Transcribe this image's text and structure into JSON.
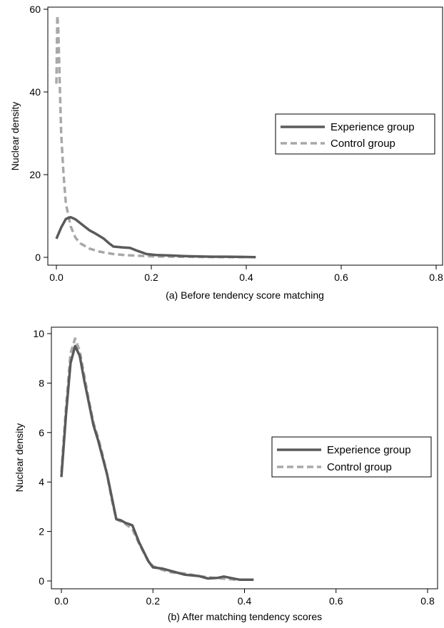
{
  "chart_data": [
    {
      "type": "line",
      "xlabel": "(a) Before tendency score matching",
      "ylabel": "Nuclear density",
      "xlim": [
        0,
        0.8
      ],
      "ylim": [
        0,
        60
      ],
      "xticks": [
        "0.0",
        "0.2",
        "0.4",
        "0.6",
        "0.8"
      ],
      "yticks": [
        "0",
        "20",
        "40",
        "60"
      ],
      "grid": false,
      "legend_position": "right",
      "series": [
        {
          "name": "Experience group",
          "style": "solid",
          "color": "#5a5a5a",
          "points": [
            [
              0.0,
              4.5
            ],
            [
              0.01,
              7.2
            ],
            [
              0.02,
              9.3
            ],
            [
              0.03,
              9.7
            ],
            [
              0.04,
              9.2
            ],
            [
              0.05,
              8.3
            ],
            [
              0.06,
              7.4
            ],
            [
              0.07,
              6.5
            ],
            [
              0.08,
              5.9
            ],
            [
              0.09,
              5.2
            ],
            [
              0.1,
              4.5
            ],
            [
              0.11,
              3.5
            ],
            [
              0.12,
              2.6
            ],
            [
              0.13,
              2.5
            ],
            [
              0.14,
              2.4
            ],
            [
              0.155,
              2.3
            ],
            [
              0.17,
              1.6
            ],
            [
              0.19,
              0.8
            ],
            [
              0.21,
              0.55
            ],
            [
              0.24,
              0.45
            ],
            [
              0.27,
              0.3
            ],
            [
              0.3,
              0.2
            ],
            [
              0.33,
              0.15
            ],
            [
              0.36,
              0.15
            ],
            [
              0.39,
              0.1
            ],
            [
              0.42,
              0.05
            ]
          ]
        },
        {
          "name": "Control group",
          "style": "dashed",
          "color": "#a8a8a8",
          "points": [
            [
              0.0,
              42.0
            ],
            [
              0.002,
              58.5
            ],
            [
              0.004,
              55.0
            ],
            [
              0.007,
              42.0
            ],
            [
              0.01,
              30.0
            ],
            [
              0.015,
              20.0
            ],
            [
              0.02,
              13.0
            ],
            [
              0.03,
              7.5
            ],
            [
              0.04,
              4.8
            ],
            [
              0.05,
              3.4
            ],
            [
              0.07,
              2.1
            ],
            [
              0.09,
              1.4
            ],
            [
              0.12,
              0.8
            ],
            [
              0.15,
              0.5
            ],
            [
              0.2,
              0.25
            ],
            [
              0.25,
              0.15
            ],
            [
              0.3,
              0.1
            ],
            [
              0.35,
              0.05
            ],
            [
              0.4,
              0.05
            ]
          ]
        }
      ]
    },
    {
      "type": "line",
      "xlabel": "(b) After matching tendency scores",
      "ylabel": "Nuclear density",
      "xlim": [
        0,
        0.8
      ],
      "ylim": [
        0,
        10
      ],
      "xticks": [
        "0.0",
        "0.2",
        "0.4",
        "0.6",
        "0.8"
      ],
      "yticks": [
        "0",
        "2",
        "4",
        "6",
        "8",
        "10"
      ],
      "grid": false,
      "legend_position": "right",
      "series": [
        {
          "name": "Experience group",
          "style": "solid",
          "color": "#5a5a5a",
          "points": [
            [
              0.0,
              4.2
            ],
            [
              0.01,
              6.7
            ],
            [
              0.02,
              8.8
            ],
            [
              0.03,
              9.5
            ],
            [
              0.04,
              9.1
            ],
            [
              0.05,
              8.1
            ],
            [
              0.06,
              7.2
            ],
            [
              0.07,
              6.3
            ],
            [
              0.08,
              5.7
            ],
            [
              0.09,
              5.0
            ],
            [
              0.1,
              4.3
            ],
            [
              0.11,
              3.4
            ],
            [
              0.12,
              2.5
            ],
            [
              0.13,
              2.45
            ],
            [
              0.14,
              2.35
            ],
            [
              0.155,
              2.25
            ],
            [
              0.17,
              1.55
            ],
            [
              0.19,
              0.8
            ],
            [
              0.2,
              0.55
            ],
            [
              0.22,
              0.5
            ],
            [
              0.24,
              0.4
            ],
            [
              0.27,
              0.25
            ],
            [
              0.3,
              0.2
            ],
            [
              0.32,
              0.1
            ],
            [
              0.34,
              0.12
            ],
            [
              0.355,
              0.18
            ],
            [
              0.37,
              0.12
            ],
            [
              0.39,
              0.05
            ],
            [
              0.42,
              0.05
            ]
          ]
        },
        {
          "name": "Control group",
          "style": "dashed",
          "color": "#a8a8a8",
          "points": [
            [
              0.0,
              4.4
            ],
            [
              0.01,
              7.0
            ],
            [
              0.02,
              9.2
            ],
            [
              0.03,
              9.8
            ],
            [
              0.04,
              9.3
            ],
            [
              0.05,
              8.3
            ],
            [
              0.06,
              7.3
            ],
            [
              0.07,
              6.4
            ],
            [
              0.08,
              5.8
            ],
            [
              0.09,
              5.1
            ],
            [
              0.1,
              4.3
            ],
            [
              0.11,
              3.3
            ],
            [
              0.12,
              2.5
            ],
            [
              0.13,
              2.4
            ],
            [
              0.14,
              2.3
            ],
            [
              0.155,
              2.1
            ],
            [
              0.17,
              1.5
            ],
            [
              0.19,
              0.8
            ],
            [
              0.2,
              0.6
            ],
            [
              0.22,
              0.45
            ],
            [
              0.24,
              0.35
            ],
            [
              0.27,
              0.3
            ],
            [
              0.3,
              0.2
            ],
            [
              0.32,
              0.15
            ],
            [
              0.35,
              0.1
            ],
            [
              0.38,
              0.05
            ]
          ]
        }
      ]
    }
  ]
}
